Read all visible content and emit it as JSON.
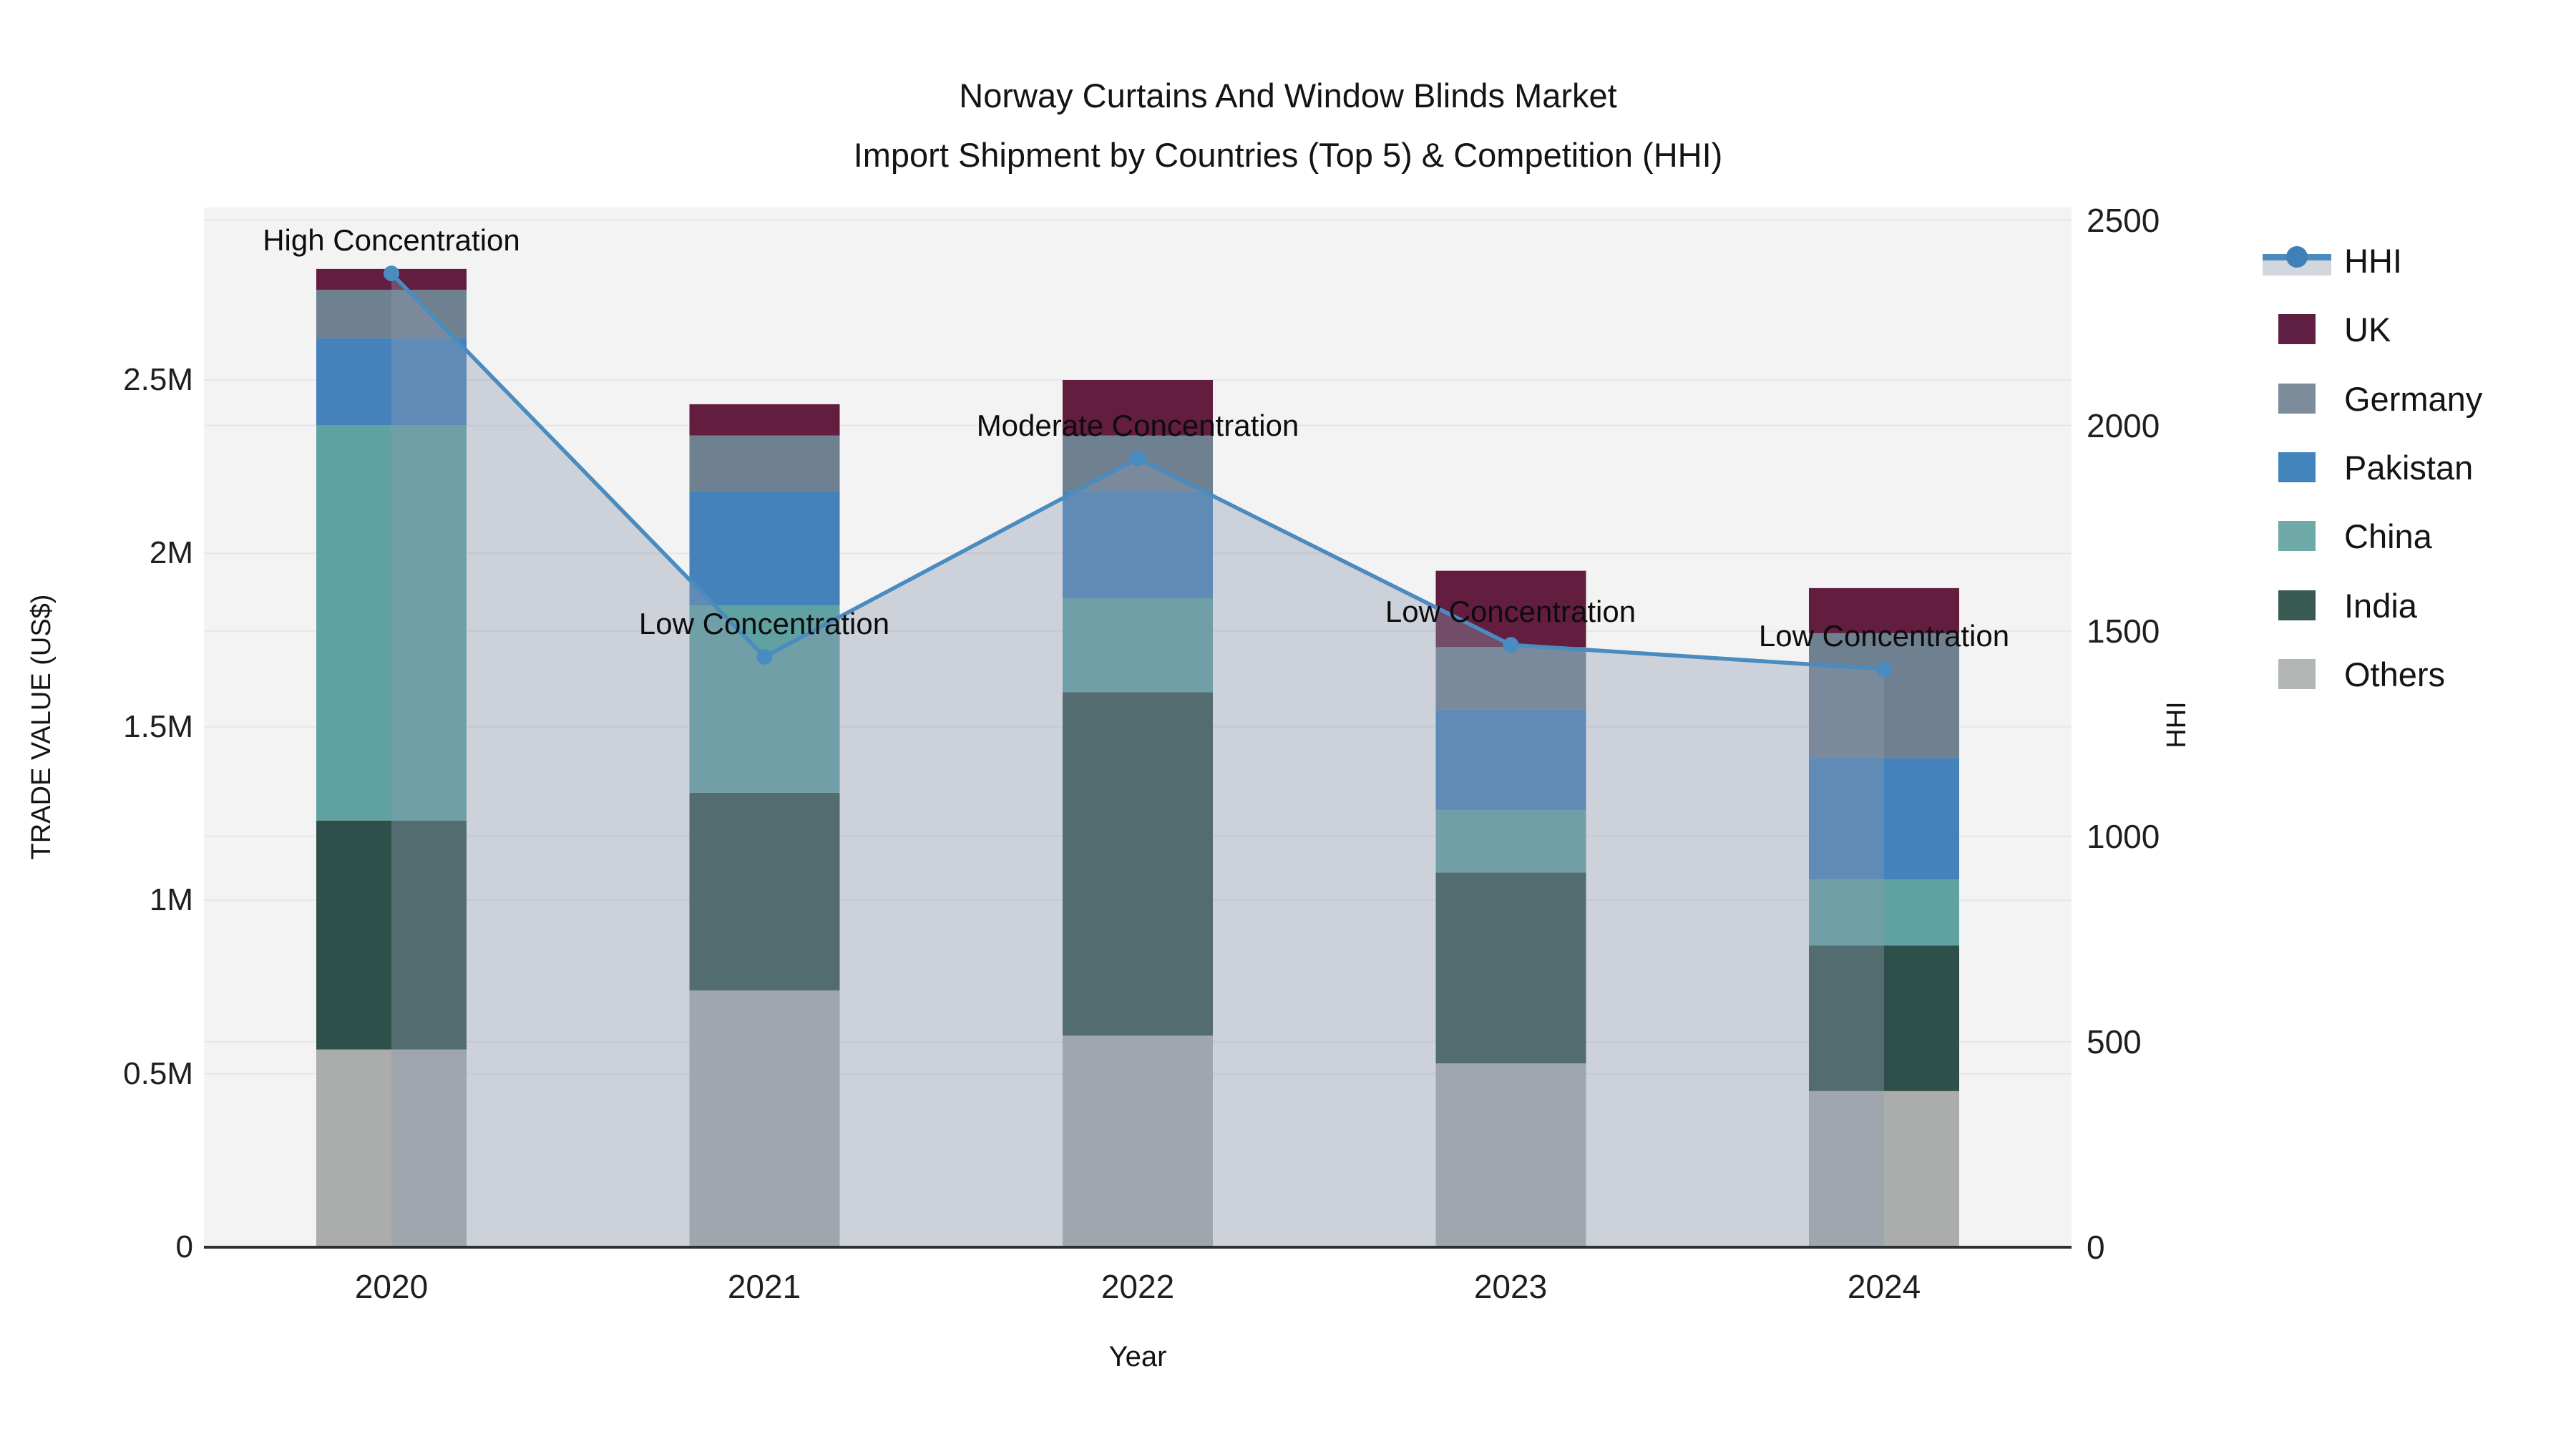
{
  "chart_data": {
    "type": "bar",
    "subtype": "stacked-bars-with-dual-axis-line",
    "title": "Norway Curtains And Window Blinds Market",
    "subtitle": "Import Shipment by Countries (Top 5) & Competition (HHI)",
    "xlabel": "Year",
    "ylabel_left": "TRADE VALUE (US$)",
    "ylabel_right": "HHI",
    "categories": [
      "2020",
      "2021",
      "2022",
      "2023",
      "2024"
    ],
    "value_unit": "million US$",
    "series": [
      {
        "name": "UK",
        "color": "#621d3f",
        "values": [
          0.06,
          0.09,
          0.16,
          0.22,
          0.13
        ]
      },
      {
        "name": "Germany",
        "color": "#6f8090",
        "values": [
          0.14,
          0.16,
          0.16,
          0.18,
          0.36
        ]
      },
      {
        "name": "Pakistan",
        "color": "#4581ba",
        "values": [
          0.25,
          0.33,
          0.31,
          0.29,
          0.35
        ]
      },
      {
        "name": "China",
        "color": "#60a2a2",
        "values": [
          1.14,
          0.54,
          0.27,
          0.18,
          0.19
        ]
      },
      {
        "name": "India",
        "color": "#2f4f4a",
        "values": [
          0.66,
          0.57,
          0.99,
          0.55,
          0.42
        ]
      },
      {
        "name": "Others",
        "color": "#aaadac",
        "values": [
          0.57,
          0.74,
          0.61,
          0.53,
          0.45
        ]
      }
    ],
    "line_series": {
      "name": "HHI",
      "color": "#4a8cc0",
      "area_fill": "rgba(142,155,176,0.38)",
      "values": [
        2370,
        1437,
        1920,
        1466,
        1407
      ]
    },
    "annotations": [
      {
        "year": "2020",
        "label": "High Concentration"
      },
      {
        "year": "2021",
        "label": "Low Concentration"
      },
      {
        "year": "2022",
        "label": "Moderate Concentration"
      },
      {
        "year": "2023",
        "label": "Low Concentration"
      },
      {
        "year": "2024",
        "label": "Low Concentration"
      }
    ],
    "yticks_left": [
      "0",
      "0.5M",
      "1M",
      "1.5M",
      "2M",
      "2.5M"
    ],
    "yticks_right": [
      "0",
      "500",
      "1000",
      "1500",
      "2000",
      "2500"
    ],
    "ylim_left_musd": [
      0,
      3.0
    ],
    "ylim_right": [
      0,
      2530
    ],
    "grid": true,
    "legend_position": "right",
    "legend_items": [
      {
        "label": "HHI",
        "swatch": "#4a8cc0"
      },
      {
        "label": "UK",
        "swatch": "#5e1f42"
      },
      {
        "label": "Germany",
        "swatch": "#7c8c9b"
      },
      {
        "label": "Pakistan",
        "swatch": "#4384bd"
      },
      {
        "label": "China",
        "swatch": "#6ea9a7"
      },
      {
        "label": "India",
        "swatch": "#395a52"
      },
      {
        "label": "Others",
        "swatch": "#b2b6b5"
      }
    ],
    "plot_colors": {
      "plot_bg": "#f3f3f4",
      "gridline": "#e4e6e9",
      "axis_line": "#2f2f2f"
    }
  }
}
